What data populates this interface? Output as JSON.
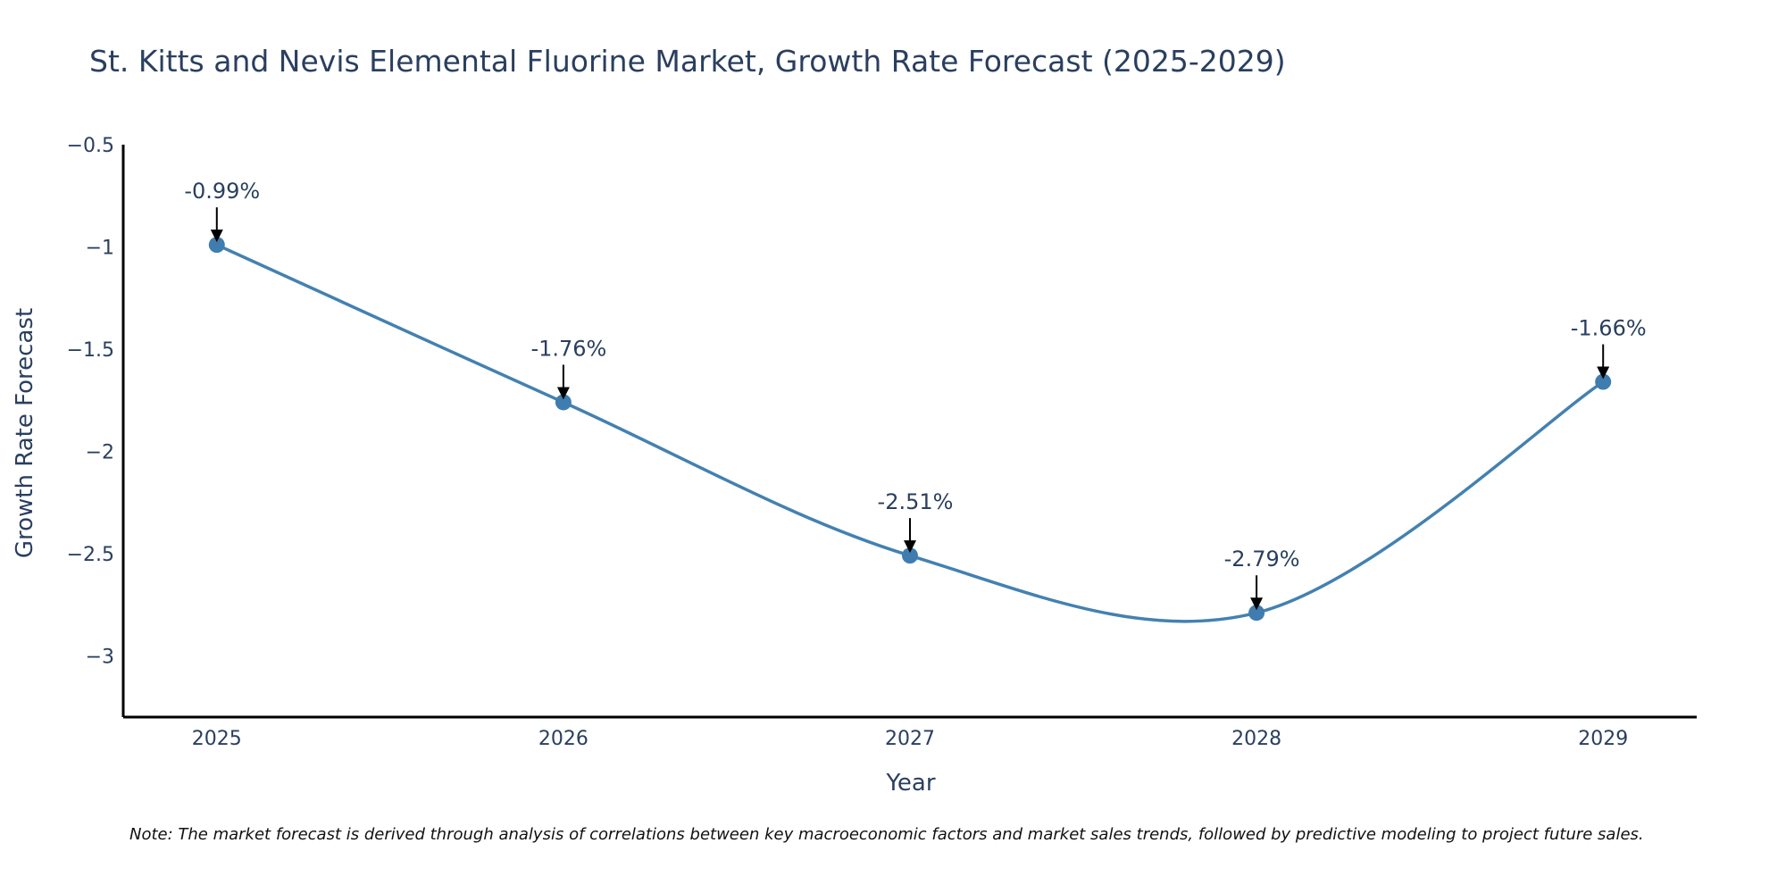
{
  "colors": {
    "line": "#4381b1",
    "marker": "#3f7db0",
    "axis": "#000000",
    "text": "#2a3f5f",
    "arrow": "#000000"
  },
  "chart_data": {
    "type": "line",
    "title": "St. Kitts and Nevis Elemental Fluorine Market, Growth Rate Forecast (2025-2029)",
    "xlabel": "Year",
    "ylabel": "Growth Rate Forecast",
    "categories": [
      "2025",
      "2026",
      "2027",
      "2028",
      "2029"
    ],
    "x": [
      2025,
      2026,
      2027,
      2028,
      2029
    ],
    "values": [
      -0.99,
      -1.76,
      -2.51,
      -2.79,
      -1.66
    ],
    "data_labels": [
      "-0.99%",
      "-1.76%",
      "-2.51%",
      "-2.79%",
      "-1.66%"
    ],
    "ylim": [
      -3.3,
      -0.5
    ],
    "xlim": [
      2024.73,
      2029.27
    ],
    "y_ticks": [
      -0.5,
      -1,
      -1.5,
      -2,
      -2.5,
      -3
    ],
    "y_tick_labels": [
      "−0.5",
      "−1",
      "−1.5",
      "−2",
      "−2.5",
      "−3"
    ],
    "smoothing": "spline",
    "grid": false,
    "note": "Note: The market forecast is derived through analysis of correlations between key macroeconomic factors and market sales trends, followed by predictive modeling to project future sales."
  }
}
